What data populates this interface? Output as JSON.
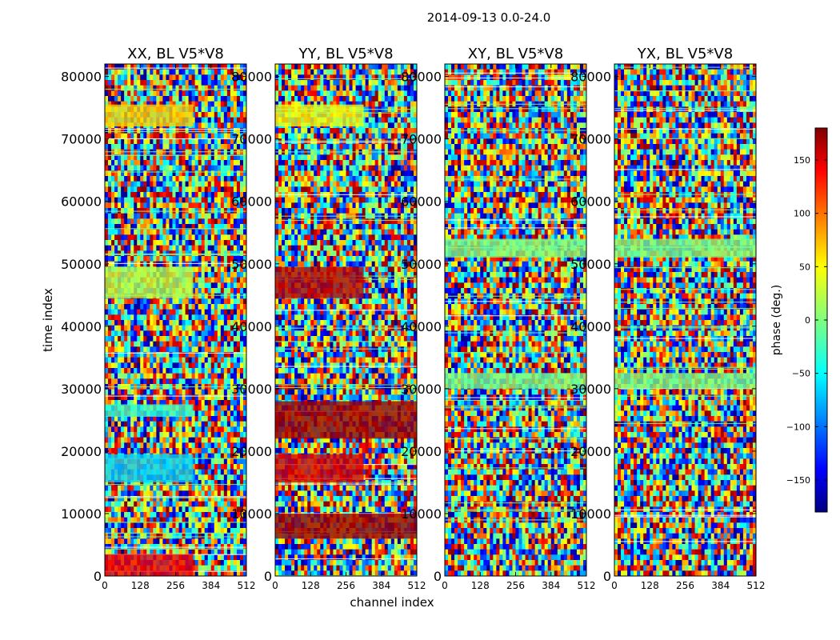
{
  "figure_title": "2014-09-13 0.0-24.0",
  "xlabel": "channel index",
  "ylabel": "time index",
  "colorbar": {
    "label": "phase (deg.)",
    "range": [
      -180,
      180
    ],
    "ticks": [
      150,
      100,
      50,
      0,
      -50,
      -100,
      -150
    ],
    "tick_labels": [
      "150",
      "100",
      "50",
      "0",
      "−50",
      "−100",
      "−150"
    ],
    "colormap": "jet"
  },
  "chart_data": {
    "type": "heatmap",
    "panels": [
      {
        "title": "XX, BL V5*V8",
        "polarization": "XX"
      },
      {
        "title": "YY, BL V5*V8",
        "polarization": "YY"
      },
      {
        "title": "XY, BL V5*V8",
        "polarization": "XY"
      },
      {
        "title": "YX, BL V5*V8",
        "polarization": "YX"
      }
    ],
    "x_ticks": [
      0,
      128,
      256,
      384,
      512
    ],
    "x_tick_labels": [
      "0",
      "128",
      "256",
      "384",
      "512"
    ],
    "xlim": [
      0,
      512
    ],
    "y_ticks": [
      0,
      10000,
      20000,
      30000,
      40000,
      50000,
      60000,
      70000,
      80000
    ],
    "y_tick_labels": [
      "0",
      "10000",
      "20000",
      "30000",
      "40000",
      "50000",
      "60000",
      "70000",
      "80000"
    ],
    "ylim": [
      0,
      82000
    ],
    "value_label": "phase (deg.)",
    "value_range": [
      -180,
      180
    ],
    "coherent_bands": {
      "XX": [
        {
          "t": [
            15000,
            19500
          ],
          "ch": [
            0,
            320
          ],
          "phase": -60
        },
        {
          "t": [
            72000,
            75500
          ],
          "ch": [
            0,
            320
          ],
          "phase": 60
        },
        {
          "t": [
            44500,
            49500
          ],
          "ch": [
            0,
            320
          ],
          "phase": 20
        },
        {
          "t": [
            25500,
            27500
          ],
          "ch": [
            0,
            320
          ],
          "phase": -30
        },
        {
          "t": [
            0,
            3500
          ],
          "ch": [
            0,
            320
          ],
          "phase": 140
        }
      ],
      "YY": [
        {
          "t": [
            15000,
            19500
          ],
          "ch": [
            0,
            320
          ],
          "phase": 150
        },
        {
          "t": [
            72000,
            75500
          ],
          "ch": [
            0,
            320
          ],
          "phase": 40
        },
        {
          "t": [
            44500,
            49500
          ],
          "ch": [
            0,
            320
          ],
          "phase": 160
        },
        {
          "t": [
            6000,
            10000
          ],
          "ch": [
            0,
            512
          ],
          "phase": 170
        },
        {
          "t": [
            22000,
            28000
          ],
          "ch": [
            0,
            512
          ],
          "phase": 170
        }
      ],
      "XY": [
        {
          "t": [
            51000,
            54000
          ],
          "ch": [
            0,
            512
          ],
          "phase": 0
        },
        {
          "t": [
            30000,
            32500
          ],
          "ch": [
            0,
            512
          ],
          "phase": 0
        }
      ],
      "YX": [
        {
          "t": [
            51000,
            54000
          ],
          "ch": [
            0,
            512
          ],
          "phase": 0
        },
        {
          "t": [
            30000,
            32500
          ],
          "ch": [
            0,
            512
          ],
          "phase": 0
        }
      ]
    }
  }
}
